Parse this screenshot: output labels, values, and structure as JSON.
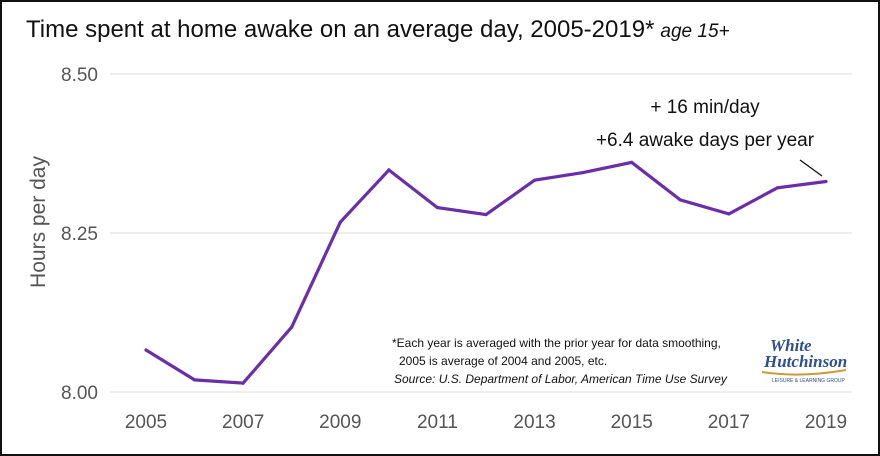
{
  "title": "Time spent at home awake on an average day, 2005-2019*",
  "subtitle": "age 15+",
  "chart_data": {
    "type": "line",
    "title": "Time spent at home awake on an average day, 2005-2019*",
    "subtitle": "age 15+",
    "xlabel": "",
    "ylabel": "Hours per day",
    "x": [
      2005,
      2006,
      2007,
      2008,
      2009,
      2010,
      2011,
      2012,
      2013,
      2014,
      2015,
      2016,
      2017,
      2018,
      2019
    ],
    "series": [
      {
        "values": [
          8.066,
          8.019,
          8.014,
          8.102,
          8.267,
          8.349,
          8.29,
          8.279,
          8.333,
          8.345,
          8.361,
          8.302,
          8.28,
          8.321,
          8.331
        ]
      }
    ],
    "xticks": [
      "2005",
      "2007",
      "2009",
      "2011",
      "2013",
      "2015",
      "2017",
      "2019"
    ],
    "yticks": [
      "8.00",
      "8.25",
      "8.50"
    ],
    "xlim": [
      2005,
      2019
    ],
    "ylim": [
      8.0,
      8.5
    ],
    "grid": true,
    "legend": "none",
    "line_color": "#6a2fa8",
    "annotations": [
      "+ 16 min/day",
      "+6.4 awake days per year"
    ]
  },
  "footnote": {
    "line1": "*Each year is averaged with the prior year for data smoothing,",
    "line2": "2005 is average of 2004 and 2005, etc.",
    "source": "Source: U.S. Department of Labor, American Time Use Survey"
  },
  "logo": {
    "line1": "White",
    "line2": "Hutchinson",
    "tagline": "LEISURE & LEARNING GROUP"
  }
}
